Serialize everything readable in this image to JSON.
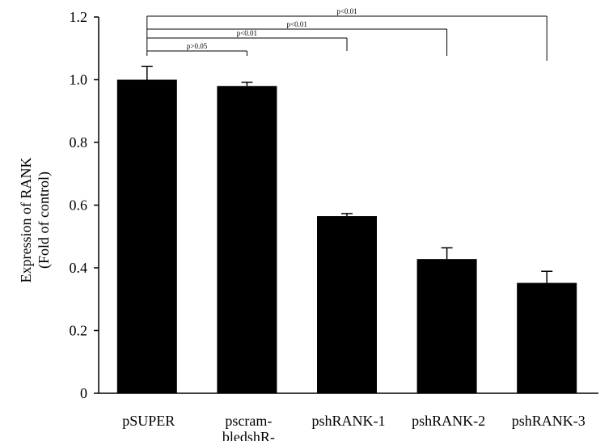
{
  "chart_data": {
    "type": "bar",
    "categories": [
      [
        "pSUPER"
      ],
      [
        "pscram-",
        "bledshR-"
      ],
      [
        "pshRANK-1"
      ],
      [
        "pshRANK-2"
      ],
      [
        "pshRANK-3"
      ]
    ],
    "values": [
      1.0,
      0.98,
      0.565,
      0.428,
      0.352
    ],
    "errors": [
      0.042,
      0.012,
      0.008,
      0.036,
      0.037
    ],
    "ylabel": [
      "Expression of RANK",
      "(Fold of control)"
    ],
    "ylim": [
      0,
      1.2
    ],
    "yticks": [
      "0",
      "0.2",
      "0.4",
      "0.6",
      "0.8",
      "1.0",
      "1.2"
    ],
    "grid": false,
    "bar_color": "#000000",
    "significance": [
      {
        "from": 0,
        "to": 1,
        "label": "p>0.05"
      },
      {
        "from": 0,
        "to": 2,
        "label": "p<0.01"
      },
      {
        "from": 0,
        "to": 3,
        "label": "p<0.01"
      },
      {
        "from": 0,
        "to": 4,
        "label": "p<0.01"
      }
    ]
  }
}
